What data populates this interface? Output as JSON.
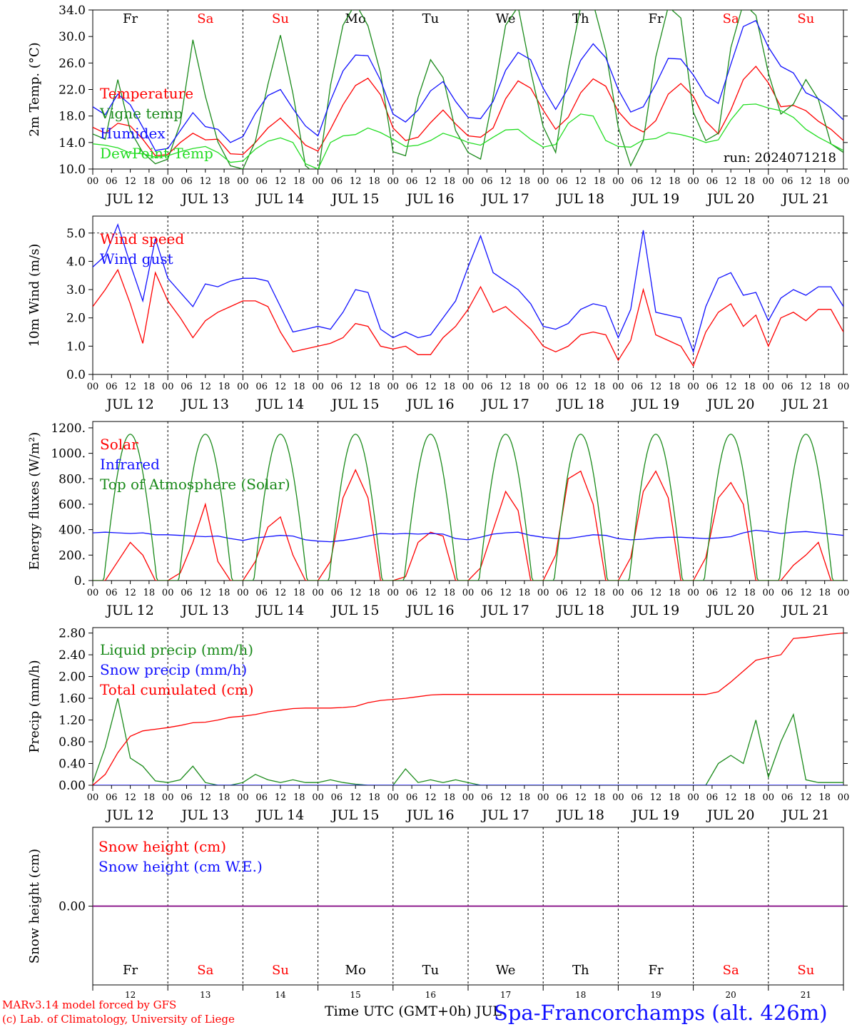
{
  "days": [
    "Fr",
    "Sa",
    "Su",
    "Mo",
    "Tu",
    "We",
    "Th",
    "Fr",
    "Sa",
    "Su"
  ],
  "day_colors": [
    "#000000",
    "#ff0000",
    "#ff0000",
    "#000000",
    "#000000",
    "#000000",
    "#000000",
    "#000000",
    "#ff0000",
    "#ff0000"
  ],
  "date_labels": [
    "JUL 12",
    "JUL 13",
    "JUL 14",
    "JUL 15",
    "JUL 16",
    "JUL 17",
    "JUL 18",
    "JUL 19",
    "JUL 20",
    "JUL 21"
  ],
  "hour_labels": [
    "00",
    "06",
    "12",
    "18"
  ],
  "bottom_day_numbers": [
    "12",
    "13",
    "14",
    "15",
    "16",
    "17",
    "18",
    "19",
    "20",
    "21"
  ],
  "x_axis_title": "Time UTC (GMT+0h) JUL",
  "footer": {
    "credit_line1": "MARv3.14 model forced by GFS",
    "credit_line2": "(c) Lab. of Climatology, University of Liege",
    "station": "Spa-Francorchamps (alt. 426m)"
  },
  "colors": {
    "red": "#ff0000",
    "green": "#1a8a1a",
    "blue": "#1010ff",
    "lime": "#22dd22",
    "purple": "#800080"
  },
  "chart_data": [
    {
      "type": "line",
      "ylabel": "2m Temp. (°C)",
      "ylim": [
        10,
        34
      ],
      "ticks": [
        "10.0",
        "14.0",
        "18.0",
        "22.0",
        "26.0",
        "30.0",
        "34.0"
      ],
      "run_label": "run: 2024071218",
      "legend": [
        "Temperature",
        "Vigne temp",
        "Humidex",
        "DewPoint Temp"
      ],
      "series": [
        {
          "name": "Temperature",
          "color": "red",
          "values": [
            16.3,
            15.4,
            16.9,
            16.5,
            14.5,
            12.0,
            12.2,
            14.0,
            15.4,
            14.4,
            14.5,
            12.3,
            12.2,
            14.0,
            16.2,
            17.7,
            15.7,
            13.6,
            12.7,
            16.0,
            19.7,
            22.6,
            23.7,
            21.2,
            16.2,
            14.3,
            14.8,
            17.0,
            18.9,
            16.8,
            15.0,
            14.8,
            16.2,
            20.6,
            23.3,
            22.2,
            18.9,
            16.0,
            17.8,
            21.5,
            23.6,
            22.5,
            18.7,
            16.6,
            15.6,
            17.3,
            21.3,
            22.9,
            21.0,
            17.2,
            15.3,
            18.9,
            23.5,
            25.5,
            23.0,
            19.4,
            19.6,
            18.8,
            17.2,
            16.0,
            14.3
          ]
        },
        {
          "name": "Vigne temp",
          "color": "green",
          "values": [
            15.3,
            14.5,
            23.5,
            15.8,
            12.5,
            10.8,
            11.5,
            16.9,
            29.5,
            21.0,
            14.1,
            10.5,
            10.0,
            14.2,
            22.8,
            30.2,
            21.4,
            10.5,
            9.0,
            22.6,
            31.7,
            35.0,
            31.6,
            24.5,
            12.6,
            12.0,
            20.8,
            26.5,
            23.8,
            15.8,
            12.5,
            11.5,
            20.9,
            31.7,
            34.5,
            24.8,
            16.4,
            12.5,
            25.1,
            34.5,
            35.0,
            27.8,
            16.3,
            10.5,
            14.3,
            26.9,
            34.5,
            32.8,
            18.6,
            14.3,
            15.4,
            28.3,
            35.0,
            33.2,
            24.5,
            18.3,
            19.8,
            23.5,
            20.5,
            13.8,
            12.5
          ]
        },
        {
          "name": "Humidex",
          "color": "blue",
          "values": [
            19.4,
            18.2,
            21.3,
            19.7,
            16.3,
            12.8,
            13.1,
            15.8,
            18.5,
            16.4,
            16.0,
            14.0,
            14.9,
            18.4,
            21.1,
            22.0,
            19.1,
            16.5,
            15.0,
            20.3,
            24.8,
            27.2,
            27.1,
            23.4,
            18.3,
            17.1,
            18.9,
            21.8,
            23.2,
            20.2,
            17.8,
            17.6,
            20.2,
            24.9,
            27.6,
            26.5,
            22.2,
            19.0,
            22.2,
            26.4,
            28.9,
            26.8,
            22.0,
            18.6,
            19.4,
            22.8,
            26.7,
            26.6,
            24.2,
            21.1,
            19.9,
            25.8,
            31.5,
            32.4,
            28.4,
            25.5,
            24.5,
            21.5,
            20.6,
            19.2,
            17.4
          ]
        },
        {
          "name": "DewPoint Temp",
          "color": "lime",
          "values": [
            13.8,
            13.6,
            13.2,
            12.4,
            12.3,
            11.8,
            12.0,
            12.6,
            13.1,
            13.4,
            12.5,
            11.0,
            11.2,
            13.0,
            14.2,
            14.7,
            14.0,
            10.8,
            10.0,
            14.0,
            15.0,
            15.2,
            16.2,
            15.5,
            14.5,
            13.4,
            13.6,
            14.3,
            15.4,
            14.8,
            14.0,
            13.6,
            14.8,
            15.9,
            16.0,
            14.5,
            13.3,
            13.7,
            16.9,
            18.3,
            18.0,
            14.3,
            13.4,
            13.3,
            14.4,
            14.6,
            15.5,
            15.2,
            14.7,
            14.0,
            14.4,
            17.4,
            19.7,
            19.8,
            19.2,
            18.8,
            17.8,
            16.0,
            14.8,
            13.8,
            12.8
          ]
        }
      ]
    },
    {
      "type": "line",
      "ylabel": "10m Wind (m/s)",
      "ylim": [
        0,
        5.6
      ],
      "ticks": [
        "0.0",
        "1.0",
        "2.0",
        "3.0",
        "4.0",
        "5.0"
      ],
      "legend": [
        "Wind speed",
        "Wind gust"
      ],
      "series": [
        {
          "name": "Wind speed",
          "color": "red",
          "values": [
            2.4,
            3.0,
            3.7,
            2.5,
            1.1,
            3.6,
            2.6,
            2.0,
            1.3,
            1.9,
            2.2,
            2.4,
            2.6,
            2.6,
            2.4,
            1.5,
            0.8,
            0.9,
            1.0,
            1.1,
            1.3,
            1.8,
            1.7,
            1.0,
            0.9,
            1.0,
            0.7,
            0.7,
            1.3,
            1.7,
            2.3,
            3.1,
            2.2,
            2.4,
            2.0,
            1.6,
            1.0,
            0.8,
            1.0,
            1.4,
            1.5,
            1.4,
            0.5,
            1.2,
            3.0,
            1.4,
            1.2,
            1.0,
            0.3,
            1.5,
            2.2,
            2.5,
            1.7,
            2.1,
            1.0,
            2.0,
            2.2,
            1.9,
            2.3,
            2.3,
            1.5
          ]
        },
        {
          "name": "Wind gust",
          "color": "blue",
          "values": [
            3.8,
            4.2,
            5.3,
            3.9,
            2.6,
            4.8,
            3.4,
            2.9,
            2.4,
            3.2,
            3.1,
            3.3,
            3.4,
            3.4,
            3.3,
            2.4,
            1.5,
            1.6,
            1.7,
            1.6,
            2.2,
            3.0,
            2.9,
            1.6,
            1.3,
            1.5,
            1.3,
            1.4,
            2.0,
            2.6,
            3.8,
            4.9,
            3.6,
            3.3,
            3.0,
            2.5,
            1.7,
            1.6,
            1.8,
            2.3,
            2.5,
            2.4,
            1.3,
            2.3,
            5.1,
            2.2,
            2.1,
            2.0,
            0.8,
            2.4,
            3.4,
            3.6,
            2.8,
            2.9,
            1.9,
            2.7,
            3.0,
            2.8,
            3.1,
            3.1,
            2.4
          ]
        }
      ]
    },
    {
      "type": "line",
      "ylabel": "Energy fluxes (W/m²)",
      "ylim": [
        0,
        1250
      ],
      "ticks": [
        "0.",
        "200.",
        "400.",
        "600.",
        "800.",
        "1000.",
        "1200."
      ],
      "legend": [
        "Solar",
        "Infrared",
        "Top of Atmosphere (Solar)"
      ],
      "series": [
        {
          "name": "Solar",
          "color": "red",
          "values": [
            0,
            0,
            150,
            300,
            200,
            0,
            0,
            60,
            300,
            600,
            150,
            0,
            0,
            150,
            420,
            500,
            200,
            0,
            0,
            150,
            650,
            870,
            650,
            0,
            0,
            30,
            300,
            380,
            350,
            0,
            0,
            100,
            400,
            700,
            550,
            0,
            0,
            200,
            800,
            860,
            600,
            0,
            0,
            180,
            700,
            860,
            650,
            0,
            0,
            180,
            650,
            770,
            600,
            0,
            0,
            0,
            120,
            200,
            300,
            0,
            0
          ]
        },
        {
          "name": "Infrared",
          "color": "blue",
          "values": [
            375,
            380,
            375,
            370,
            375,
            360,
            360,
            355,
            350,
            345,
            350,
            330,
            315,
            335,
            345,
            355,
            350,
            320,
            310,
            305,
            315,
            330,
            350,
            370,
            365,
            370,
            365,
            370,
            365,
            330,
            320,
            340,
            365,
            375,
            380,
            355,
            340,
            330,
            330,
            345,
            360,
            355,
            330,
            320,
            325,
            335,
            340,
            340,
            335,
            330,
            335,
            345,
            375,
            395,
            385,
            370,
            380,
            385,
            375,
            365,
            355
          ]
        },
        {
          "name": "Top of Atmosphere (Solar)",
          "color": "green",
          "values": [
            0,
            0,
            0,
            0,
            0,
            0,
            0,
            0,
            0,
            0,
            0,
            0,
            0,
            0,
            0,
            0,
            0,
            0,
            0,
            0,
            0,
            0,
            0,
            0,
            0,
            0,
            0,
            0,
            0,
            0,
            0,
            0,
            0,
            0,
            0,
            0,
            0,
            0,
            0,
            0,
            0,
            0,
            0,
            0,
            0,
            0,
            0,
            0,
            0,
            0,
            0,
            0,
            0,
            0,
            0,
            0,
            0,
            0,
            0,
            0,
            0
          ]
        }
      ],
      "toa_peak": 1150
    },
    {
      "type": "line",
      "ylabel": "Precip (mm/h)",
      "ylim": [
        0,
        2.9
      ],
      "ticks": [
        "0.00",
        "0.40",
        "0.80",
        "1.20",
        "1.60",
        "2.00",
        "2.40",
        "2.80"
      ],
      "legend": [
        "Liquid precip (mm/h)",
        "Snow precip (mm/h)",
        "Total cumulated (cm)"
      ],
      "series": [
        {
          "name": "Liquid precip (mm/h)",
          "color": "green",
          "values": [
            0.05,
            0.7,
            1.6,
            0.5,
            0.35,
            0.08,
            0.05,
            0.1,
            0.35,
            0.05,
            0.0,
            0.0,
            0.05,
            0.2,
            0.1,
            0.05,
            0.1,
            0.05,
            0.05,
            0.1,
            0.05,
            0.02,
            0.0,
            0.0,
            0.0,
            0.3,
            0.05,
            0.1,
            0.05,
            0.1,
            0.05,
            0.0,
            0.0,
            0.0,
            0.0,
            0.0,
            0.0,
            0.0,
            0.0,
            0.0,
            0.0,
            0.0,
            0.0,
            0.0,
            0.0,
            0.0,
            0.0,
            0.0,
            0.0,
            0.0,
            0.4,
            0.55,
            0.4,
            1.2,
            0.15,
            0.8,
            1.3,
            0.1,
            0.05,
            0.05,
            0.05
          ]
        },
        {
          "name": "Snow precip (mm/h)",
          "color": "blue",
          "values": [
            0,
            0,
            0,
            0,
            0,
            0,
            0,
            0,
            0,
            0,
            0,
            0,
            0,
            0,
            0,
            0,
            0,
            0,
            0,
            0,
            0,
            0,
            0,
            0,
            0,
            0,
            0,
            0,
            0,
            0,
            0,
            0,
            0,
            0,
            0,
            0,
            0,
            0,
            0,
            0,
            0,
            0,
            0,
            0,
            0,
            0,
            0,
            0,
            0,
            0,
            0,
            0,
            0,
            0,
            0,
            0,
            0,
            0,
            0,
            0,
            0
          ]
        },
        {
          "name": "Total cumulated (cm)",
          "color": "red",
          "values": [
            0.0,
            0.2,
            0.6,
            0.9,
            1.0,
            1.03,
            1.06,
            1.1,
            1.15,
            1.16,
            1.2,
            1.25,
            1.27,
            1.3,
            1.35,
            1.38,
            1.41,
            1.42,
            1.42,
            1.42,
            1.43,
            1.45,
            1.52,
            1.56,
            1.58,
            1.6,
            1.63,
            1.66,
            1.67,
            1.67,
            1.67,
            1.67,
            1.67,
            1.67,
            1.67,
            1.67,
            1.67,
            1.67,
            1.67,
            1.67,
            1.67,
            1.67,
            1.67,
            1.67,
            1.67,
            1.67,
            1.67,
            1.67,
            1.67,
            1.67,
            1.72,
            1.9,
            2.1,
            2.3,
            2.35,
            2.4,
            2.7,
            2.72,
            2.75,
            2.78,
            2.8
          ]
        }
      ]
    },
    {
      "type": "line",
      "ylabel": "Snow height (cm)",
      "ylim": [
        -1,
        1
      ],
      "ticks": [
        "0.00"
      ],
      "legend": [
        "Snow height (cm)",
        "Snow height (cm W.E.)"
      ],
      "series": [
        {
          "name": "Snow height (cm)",
          "color": "red",
          "values": [
            0,
            0
          ]
        },
        {
          "name": "Snow height (cm W.E.)",
          "color": "blue",
          "values": [
            0,
            0
          ]
        }
      ]
    }
  ]
}
